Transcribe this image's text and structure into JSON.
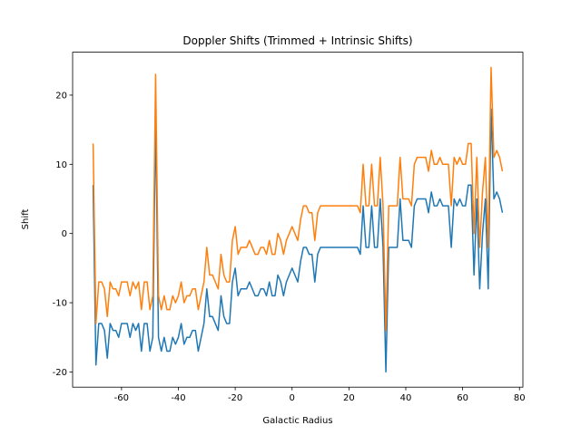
{
  "chart_data": {
    "type": "line",
    "title": "Doppler Shifts (Trimmed + Intrinsic Shifts)",
    "xlabel": "Galactic Radius",
    "ylabel": "Shift",
    "x": [
      -70,
      -69,
      -68,
      -67,
      -66,
      -65,
      -64,
      -63,
      -62,
      -61,
      -60,
      -59,
      -58,
      -57,
      -56,
      -55,
      -54,
      -53,
      -52,
      -51,
      -50,
      -49,
      -48,
      -47,
      -46,
      -45,
      -44,
      -43,
      -42,
      -41,
      -40,
      -39,
      -38,
      -37,
      -36,
      -35,
      -34,
      -33,
      -32,
      -31,
      -30,
      -29,
      -28,
      -27,
      -26,
      -25,
      -24,
      -23,
      -22,
      -21,
      -20,
      -19,
      -18,
      -17,
      -16,
      -15,
      -14,
      -13,
      -12,
      -11,
      -10,
      -9,
      -8,
      -7,
      -6,
      -5,
      -4,
      -3,
      -2,
      -1,
      0,
      1,
      2,
      3,
      4,
      5,
      6,
      7,
      8,
      9,
      10,
      11,
      12,
      13,
      14,
      15,
      16,
      17,
      18,
      19,
      20,
      21,
      22,
      23,
      24,
      25,
      26,
      27,
      28,
      29,
      30,
      31,
      32,
      33,
      34,
      35,
      36,
      37,
      38,
      39,
      40,
      41,
      42,
      43,
      44,
      45,
      46,
      47,
      48,
      49,
      50,
      51,
      52,
      53,
      54,
      55,
      56,
      57,
      58,
      59,
      60,
      61,
      62,
      63,
      64,
      65,
      66,
      67,
      68,
      69,
      70,
      71,
      72,
      73,
      74
    ],
    "series": [
      {
        "color": "#1f77b4",
        "values": [
          7,
          -19,
          -13,
          -13,
          -14,
          -18,
          -13,
          -14,
          -14,
          -15,
          -13,
          -13,
          -13,
          -15,
          -13,
          -14,
          -13,
          -17,
          -13,
          -13,
          -17,
          -15,
          17,
          -15,
          -17,
          -15,
          -17,
          -17,
          -15,
          -16,
          -15,
          -13,
          -16,
          -15,
          -15,
          -14,
          -14,
          -17,
          -15,
          -13,
          -8,
          -12,
          -12,
          -13,
          -14,
          -9,
          -12,
          -13,
          -13,
          -7,
          -5,
          -9,
          -8,
          -8,
          -8,
          -7,
          -8,
          -9,
          -9,
          -8,
          -8,
          -9,
          -7,
          -9,
          -9,
          -6,
          -7,
          -9,
          -7,
          -6,
          -5,
          -6,
          -7,
          -4,
          -2,
          -2,
          -3,
          -3,
          -7,
          -3,
          -2,
          -2,
          -2,
          -2,
          -2,
          -2,
          -2,
          -2,
          -2,
          -2,
          -2,
          -2,
          -2,
          -2,
          -3,
          4,
          -2,
          -2,
          4,
          -2,
          -2,
          5,
          -2,
          -20,
          -2,
          -2,
          -2,
          -2,
          5,
          -1,
          -1,
          -1,
          -2,
          4,
          5,
          5,
          5,
          5,
          3,
          6,
          4,
          4,
          5,
          4,
          4,
          4,
          -2,
          5,
          4,
          5,
          4,
          4,
          7,
          7,
          -6,
          5,
          -8,
          0,
          5,
          -8,
          18,
          5,
          6,
          5,
          3
        ]
      },
      {
        "color": "#ff7f0e",
        "values": [
          13,
          -13,
          -7,
          -7,
          -8,
          -12,
          -7,
          -8,
          -8,
          -9,
          -7,
          -7,
          -7,
          -9,
          -7,
          -8,
          -7,
          -11,
          -7,
          -7,
          -11,
          -9,
          23,
          -9,
          -11,
          -9,
          -11,
          -11,
          -9,
          -10,
          -9,
          -7,
          -10,
          -9,
          -9,
          -8,
          -8,
          -11,
          -9,
          -7,
          -2,
          -6,
          -6,
          -7,
          -8,
          -3,
          -6,
          -7,
          -7,
          -1,
          1,
          -3,
          -2,
          -2,
          -2,
          -1,
          -2,
          -3,
          -3,
          -2,
          -2,
          -3,
          -1,
          -3,
          -3,
          0,
          -1,
          -3,
          -1,
          0,
          1,
          0,
          -1,
          2,
          4,
          4,
          3,
          3,
          -1,
          3,
          4,
          4,
          4,
          4,
          4,
          4,
          4,
          4,
          4,
          4,
          4,
          4,
          4,
          4,
          3,
          10,
          4,
          4,
          10,
          4,
          4,
          11,
          4,
          -14,
          4,
          4,
          4,
          4,
          11,
          5,
          5,
          5,
          4,
          10,
          11,
          11,
          11,
          11,
          9,
          12,
          10,
          10,
          11,
          10,
          10,
          10,
          4,
          11,
          10,
          11,
          10,
          10,
          13,
          13,
          0,
          11,
          -2,
          6,
          11,
          -2,
          24,
          11,
          12,
          11,
          9
        ]
      }
    ],
    "xlim": [
      -77.2,
      81.2
    ],
    "ylim": [
      -22.2,
      26.2
    ],
    "xticks": [
      -60,
      -40,
      -20,
      0,
      20,
      40,
      60,
      80
    ],
    "yticks": [
      -20,
      -10,
      0,
      10,
      20
    ]
  }
}
